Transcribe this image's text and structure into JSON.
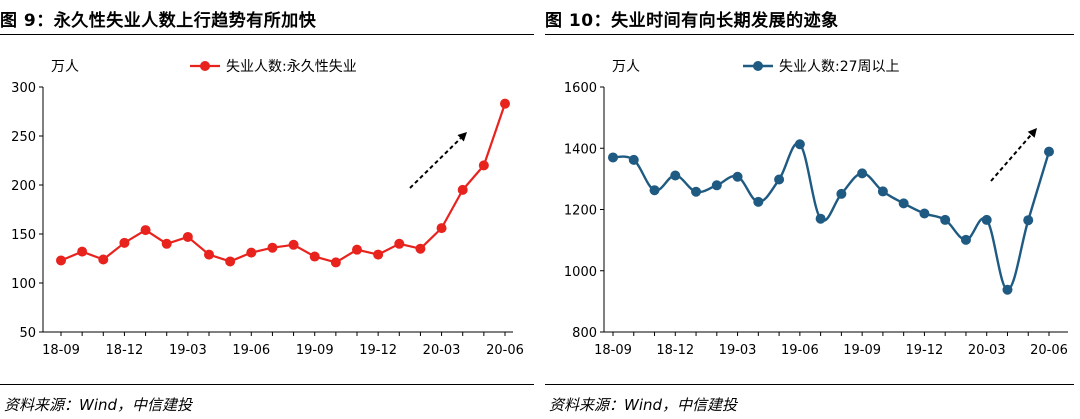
{
  "panels": [
    {
      "title": "图 9：永久性失业人数上行趋势有所加快",
      "source": "资料来源：Wind，中信建投",
      "chart_data": {
        "type": "line",
        "unit_label": "万人",
        "categories": [
          "18-09",
          "18-10",
          "18-11",
          "18-12",
          "19-01",
          "19-02",
          "19-03",
          "19-04",
          "19-05",
          "19-06",
          "19-07",
          "19-08",
          "19-09",
          "19-10",
          "19-11",
          "19-12",
          "20-01",
          "20-02",
          "20-03",
          "20-04",
          "20-05",
          "20-06"
        ],
        "tick_labels": [
          "18-09",
          "18-12",
          "19-03",
          "19-06",
          "19-09",
          "19-12",
          "20-03",
          "20-06"
        ],
        "series": [
          {
            "name": "失业人数:永久性失业",
            "color": "#e8231e",
            "values": [
              123,
              132,
              124,
              141,
              154,
              140,
              147,
              129,
              122,
              131,
              136,
              139,
              127,
              121,
              134,
              129,
              140,
              135,
              156,
              195,
              220,
              283
            ]
          }
        ],
        "ylim": [
          50,
          300
        ],
        "yticks": [
          50,
          100,
          150,
          200,
          250,
          300
        ],
        "smooth": false,
        "legend_position": "top-center",
        "annotation": "upward dashed arrow",
        "grid": false
      }
    },
    {
      "title": "图 10：失业时间有向长期发展的迹象",
      "source": "资料来源：Wind，中信建投",
      "chart_data": {
        "type": "line",
        "unit_label": "万人",
        "categories": [
          "18-09",
          "18-10",
          "18-11",
          "18-12",
          "19-01",
          "19-02",
          "19-03",
          "19-04",
          "19-05",
          "19-06",
          "19-07",
          "19-08",
          "19-09",
          "19-10",
          "19-11",
          "19-12",
          "20-01",
          "20-02",
          "20-03",
          "20-04",
          "20-05",
          "20-06"
        ],
        "tick_labels": [
          "18-09",
          "18-12",
          "19-03",
          "19-06",
          "19-09",
          "19-12",
          "20-03",
          "20-06"
        ],
        "series": [
          {
            "name": "失业人数:27周以上",
            "color": "#1f5a82",
            "values": [
              1370,
              1362,
              1263,
              1311,
              1258,
              1279,
              1307,
              1225,
              1298,
              1413,
              1170,
              1251,
              1318,
              1259,
              1220,
              1187,
              1166,
              1101,
              1166,
              938,
              1165,
              1389
            ]
          }
        ],
        "ylim": [
          800,
          1600
        ],
        "yticks": [
          800,
          1000,
          1200,
          1400,
          1600
        ],
        "smooth": true,
        "legend_position": "top-center",
        "annotation": "upward dashed arrow",
        "grid": false
      }
    }
  ]
}
